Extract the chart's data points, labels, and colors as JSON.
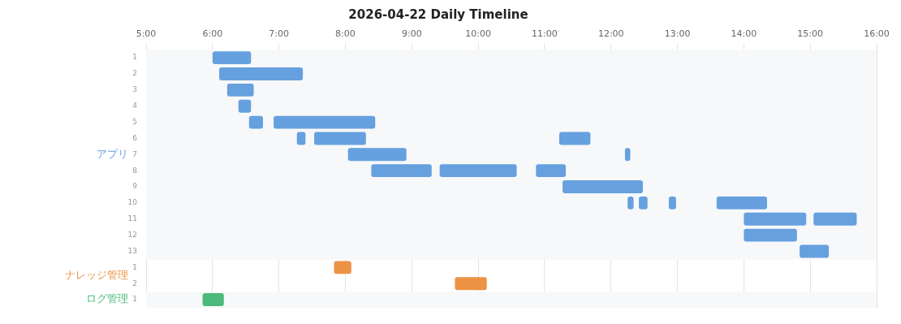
{
  "chart_data": {
    "type": "bar",
    "orientation": "horizontal",
    "title": "2026-04-22 Daily Timeline",
    "categories": [
      "1",
      "2",
      "3",
      "4",
      "5",
      "6",
      "7",
      "8",
      "9",
      "10",
      "11",
      "12",
      "13",
      "1",
      "2",
      "1"
    ],
    "series": [
      {
        "name": "アプリ",
        "color": "#66a0df",
        "base": [
          6.0,
          6.1,
          6.22,
          6.39,
          6.55,
          7.27,
          8.04,
          8.39,
          11.27,
          12.25,
          14.0,
          14.0,
          14.84,
          null,
          null,
          null
        ],
        "values": [
          0.58,
          1.26,
          0.4,
          0.19,
          0.21,
          0.13,
          0.88,
          0.91,
          1.21,
          0.09,
          0.94,
          0.8,
          0.44,
          null,
          null,
          null
        ]
      },
      {
        "color": "#66a0df",
        "base": [
          null,
          null,
          null,
          null,
          6.92,
          7.53,
          12.21,
          9.42,
          null,
          12.42,
          15.05,
          null,
          null,
          null,
          null,
          null
        ],
        "values": [
          null,
          null,
          null,
          null,
          1.53,
          0.78,
          0.08,
          1.16,
          null,
          0.13,
          0.65,
          null,
          null,
          null,
          null,
          null
        ]
      },
      {
        "color": "#66a0df",
        "base": [
          null,
          null,
          null,
          null,
          null,
          11.22,
          null,
          10.87,
          null,
          12.87,
          null,
          null,
          null,
          null,
          null,
          null
        ],
        "values": [
          null,
          null,
          null,
          null,
          null,
          0.47,
          null,
          0.45,
          null,
          0.11,
          null,
          null,
          null,
          null,
          null,
          null
        ]
      },
      {
        "color": "#66a0df",
        "base": [
          null,
          null,
          null,
          null,
          null,
          null,
          null,
          null,
          null,
          13.59,
          null,
          null,
          null,
          null,
          null,
          null
        ],
        "values": [
          null,
          null,
          null,
          null,
          null,
          null,
          null,
          null,
          null,
          0.76,
          null,
          null,
          null,
          null,
          null,
          null
        ]
      },
      {
        "name": "ナレッジ管理",
        "color": "#ec9244",
        "base": [
          null,
          null,
          null,
          null,
          null,
          null,
          null,
          null,
          null,
          null,
          null,
          null,
          null,
          7.83,
          9.65,
          null
        ],
        "values": [
          null,
          null,
          null,
          null,
          null,
          null,
          null,
          null,
          null,
          null,
          null,
          null,
          null,
          0.26,
          0.48,
          null
        ]
      },
      {
        "name": "ログ管理",
        "color": "#4cba7a",
        "base": [
          null,
          null,
          null,
          null,
          null,
          null,
          null,
          null,
          null,
          null,
          null,
          null,
          null,
          null,
          null,
          5.85
        ],
        "values": [
          null,
          null,
          null,
          null,
          null,
          null,
          null,
          null,
          null,
          null,
          null,
          null,
          null,
          null,
          null,
          0.32
        ]
      }
    ],
    "xlim": [
      5,
      16
    ],
    "xticks": [
      {
        "value": 5,
        "label": "5:00"
      },
      {
        "value": 6,
        "label": "6:00"
      },
      {
        "value": 7,
        "label": "7:00"
      },
      {
        "value": 8,
        "label": "8:00"
      },
      {
        "value": 9,
        "label": "9:00"
      },
      {
        "value": 10,
        "label": "10:00"
      },
      {
        "value": 11,
        "label": "11:00"
      },
      {
        "value": 12,
        "label": "12:00"
      },
      {
        "value": 13,
        "label": "13:00"
      },
      {
        "value": 14,
        "label": "14:00"
      },
      {
        "value": 15,
        "label": "15:00"
      },
      {
        "value": 16,
        "label": "16:00"
      }
    ],
    "grid": "x"
  }
}
